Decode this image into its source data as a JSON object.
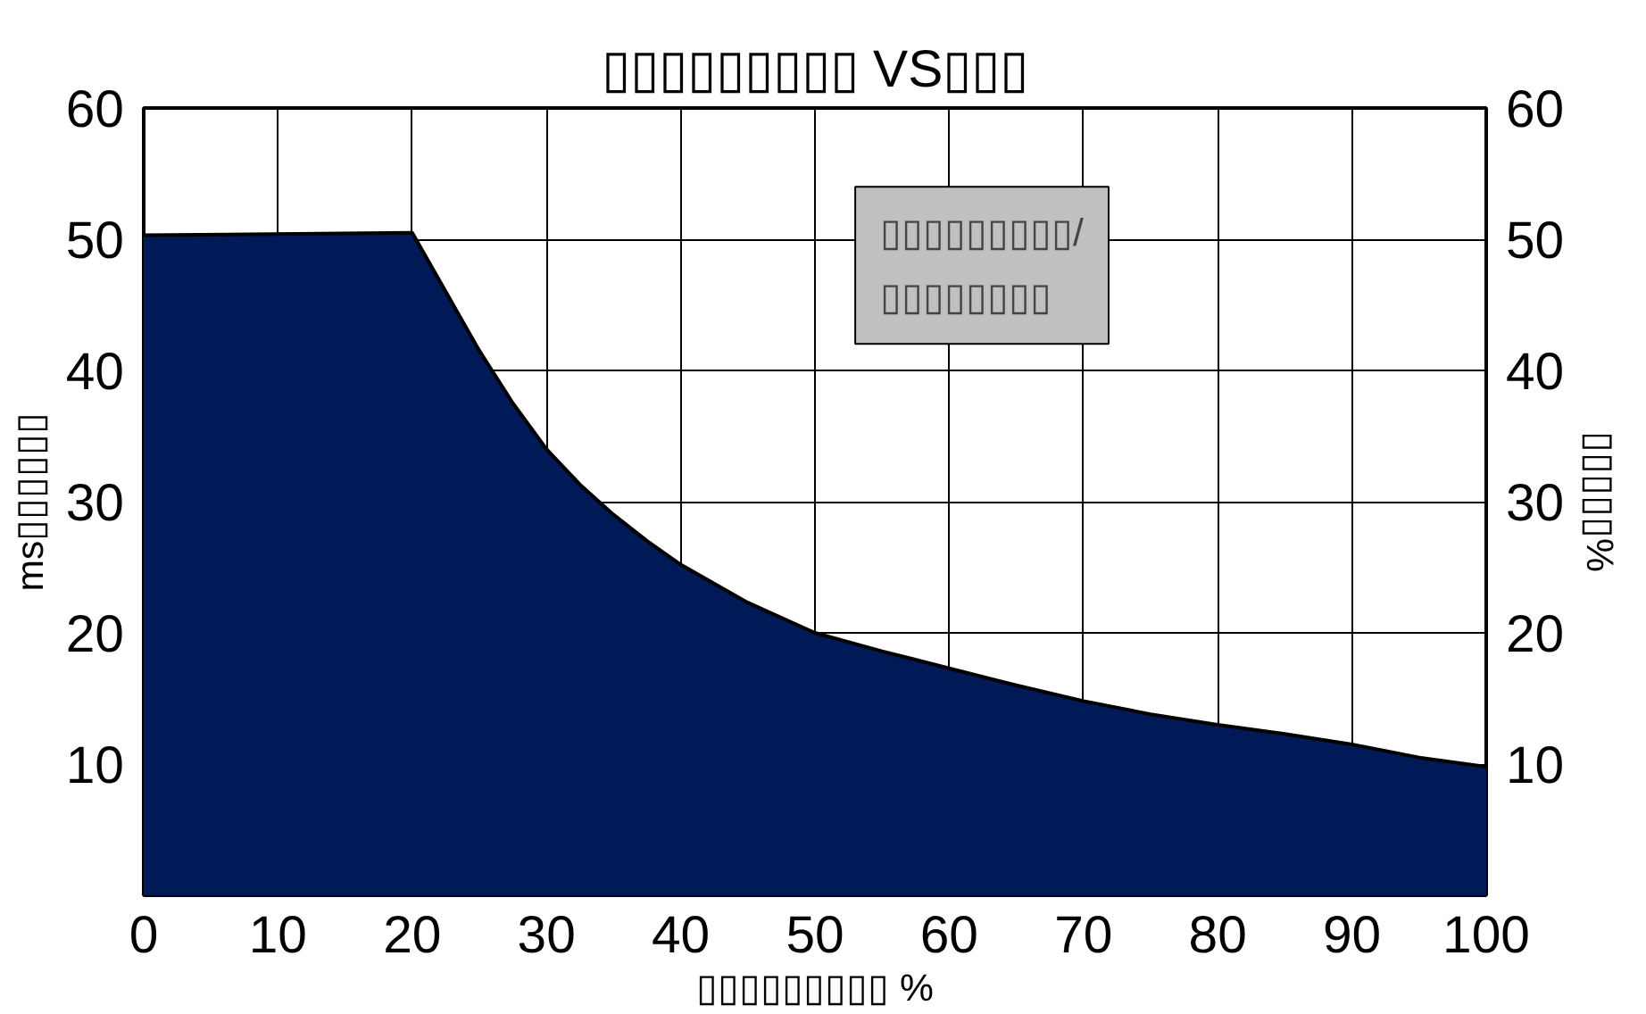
{
  "chart_data": {
    "type": "area",
    "title": "▯▯▯▯▯▯▯▯▯ VS▯▯▯",
    "xlabel": "▯▯▯▯▯▯▯▯▯ %",
    "ylabel": "ms▯▯▯▯▯▯",
    "y2label": "▯▯▯▯▯%",
    "annotations": [
      "▯▯▯▯▯▯▯▯▯/\n▯▯▯▯▯▯▯▯"
    ],
    "x": [
      0,
      20,
      22.5,
      25,
      27.5,
      30,
      32.5,
      35,
      37.5,
      40,
      45,
      50,
      55,
      60,
      65,
      70,
      75,
      80,
      85,
      90,
      95,
      100
    ],
    "series": [
      {
        "color": "#001a57",
        "values": [
          50.3,
          50.5,
          46,
          41.5,
          37.5,
          34,
          31.3,
          29,
          27,
          25.2,
          22.3,
          20,
          18.6,
          17.3,
          16,
          14.8,
          13.8,
          13,
          12.3,
          11.5,
          10.5,
          9.8
        ]
      }
    ],
    "xlim": [
      0,
      100
    ],
    "xticks": [
      0,
      10,
      20,
      30,
      40,
      50,
      60,
      70,
      80,
      90,
      100
    ],
    "ylim": [
      0,
      60
    ],
    "yticks": [
      10,
      20,
      30,
      40,
      50,
      60
    ],
    "y2lim": [
      0,
      60
    ],
    "y2ticks": [
      10,
      20,
      30,
      40,
      50,
      60
    ],
    "grid": true
  }
}
